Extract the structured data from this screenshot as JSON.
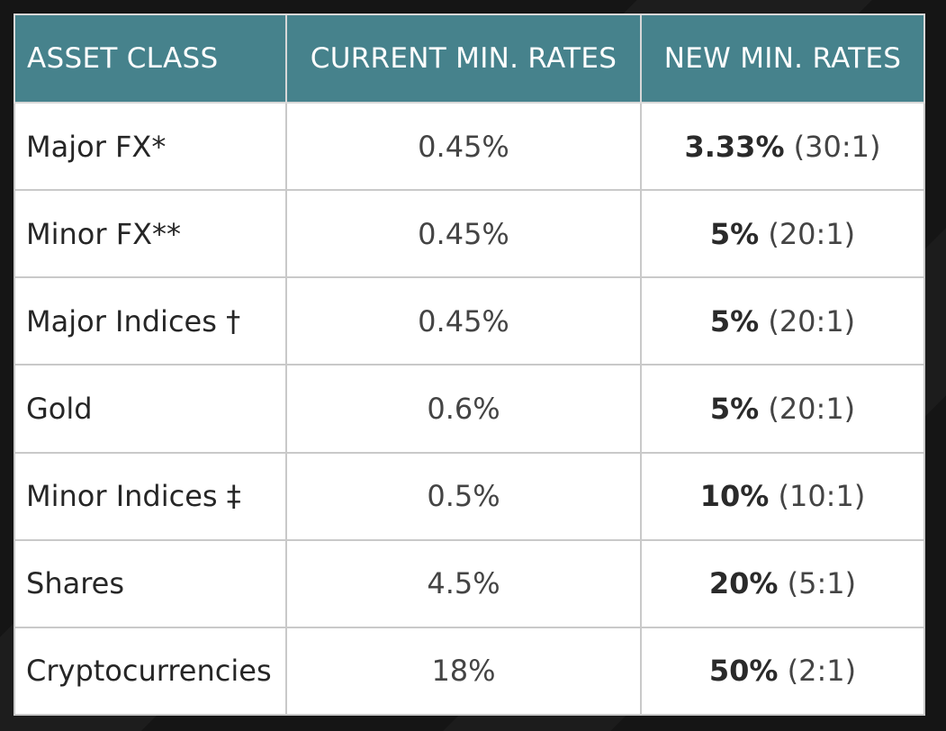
{
  "table": {
    "headers": {
      "asset_class": "ASSET CLASS",
      "current_min_rates": "CURRENT MIN. RATES",
      "new_min_rates": "NEW MIN. RATES"
    },
    "rows": [
      {
        "asset": "Major FX*",
        "current": "0.45%",
        "new_rate": "3.33%",
        "new_ratio": "(30:1)"
      },
      {
        "asset": "Minor FX**",
        "current": "0.45%",
        "new_rate": "5%",
        "new_ratio": "(20:1)"
      },
      {
        "asset": "Major Indices †",
        "current": "0.45%",
        "new_rate": "5%",
        "new_ratio": "(20:1)"
      },
      {
        "asset": "Gold",
        "current": "0.6%",
        "new_rate": "5%",
        "new_ratio": "(20:1)"
      },
      {
        "asset": "Minor Indices ‡",
        "current": "0.5%",
        "new_rate": "10%",
        "new_ratio": "(10:1)"
      },
      {
        "asset": "Shares",
        "current": "4.5%",
        "new_rate": "20%",
        "new_ratio": "(5:1)"
      },
      {
        "asset": "Cryptocurrencies",
        "current": "18%",
        "new_rate": "50%",
        "new_ratio": "(2:1)"
      }
    ]
  },
  "colors": {
    "header_bg": "#46828c",
    "header_text": "#ffffff",
    "page_bg": "#151515",
    "grid": "#c9c9c9"
  }
}
